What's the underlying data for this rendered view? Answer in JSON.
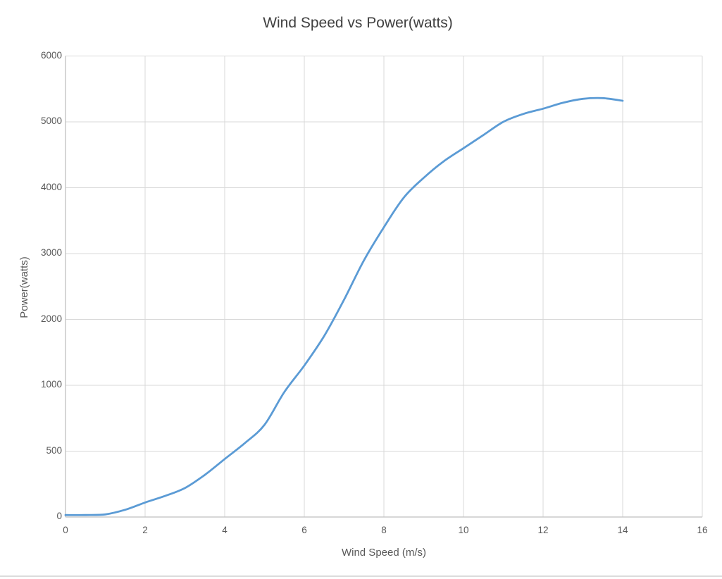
{
  "page": {
    "background_color": "#ffffff",
    "bottom_border_color": "#dcdcdc"
  },
  "chart_data": {
    "type": "line",
    "title": "Wind Speed vs Power(watts)",
    "xlabel": "Wind Speed (m/s)",
    "ylabel": "Power(watts)",
    "xlim": [
      0,
      16
    ],
    "x_ticks": [
      0,
      2,
      4,
      6,
      8,
      10,
      12,
      14,
      16
    ],
    "y_ticks": [
      0,
      500,
      1000,
      2000,
      3000,
      4000,
      5000,
      6000
    ],
    "y_tick_spacing": "uniform-pixel-spacing-despite-nonuniform-values",
    "grid": true,
    "legend": "none",
    "colors": {
      "line": "#5b9bd5",
      "gridline": "#d9d9d9",
      "axis_line": "#bfbfbf",
      "tick_text": "#595959",
      "title_text": "#404040"
    },
    "series": [
      {
        "name": "Power",
        "x": [
          0,
          0.5,
          1,
          1.5,
          2,
          2.5,
          3,
          3.5,
          4,
          4.5,
          5,
          5.5,
          6,
          6.5,
          7,
          7.5,
          8,
          8.5,
          9,
          9.5,
          10,
          10.5,
          11,
          11.5,
          12,
          12.5,
          13,
          13.5,
          14
        ],
        "y": [
          15,
          15,
          20,
          55,
          110,
          160,
          220,
          320,
          440,
          560,
          700,
          950,
          1300,
          1750,
          2300,
          2900,
          3400,
          3850,
          4150,
          4400,
          4600,
          4800,
          5000,
          5120,
          5200,
          5290,
          5350,
          5360,
          5320
        ]
      }
    ]
  }
}
